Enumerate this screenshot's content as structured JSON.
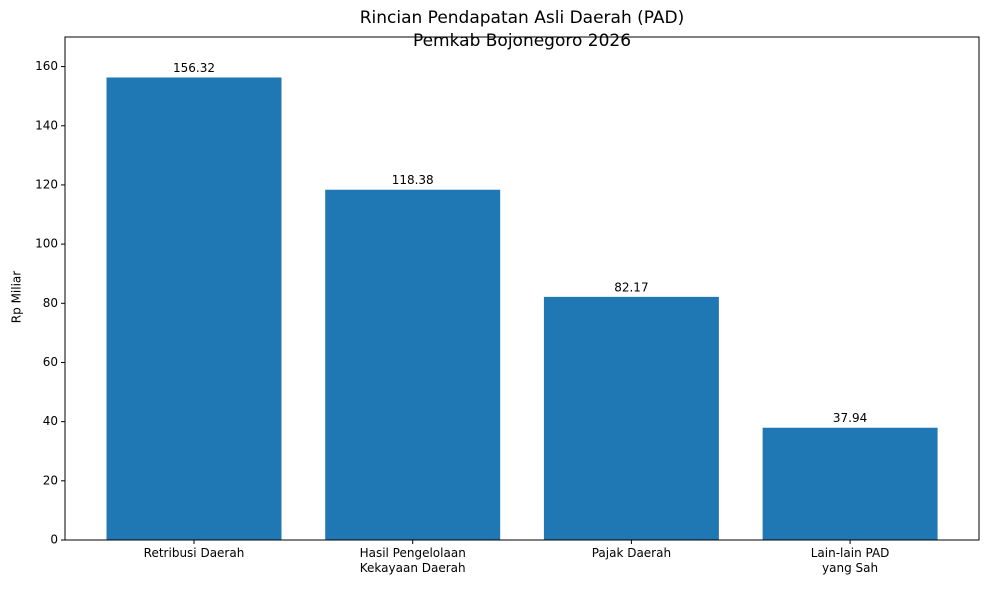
{
  "chart_data": {
    "type": "bar",
    "title": [
      "Rincian Pendapatan Asli Daerah (PAD)",
      "Pemkab Bojonegoro 2026"
    ],
    "y_label": "Rp Miliar",
    "categories": [
      "Retribusi Daerah",
      "Hasil Pengelolaan\nKekayaan Daerah",
      "Pajak Daerah",
      "Lain-lain PAD\nyang Sah"
    ],
    "values": [
      156.32,
      118.38,
      82.17,
      37.94
    ],
    "color": "#1f77b4",
    "ylim": [
      0,
      170
    ],
    "yticks": [
      0,
      20,
      40,
      60,
      80,
      100,
      120,
      140,
      160
    ],
    "grid": false
  }
}
